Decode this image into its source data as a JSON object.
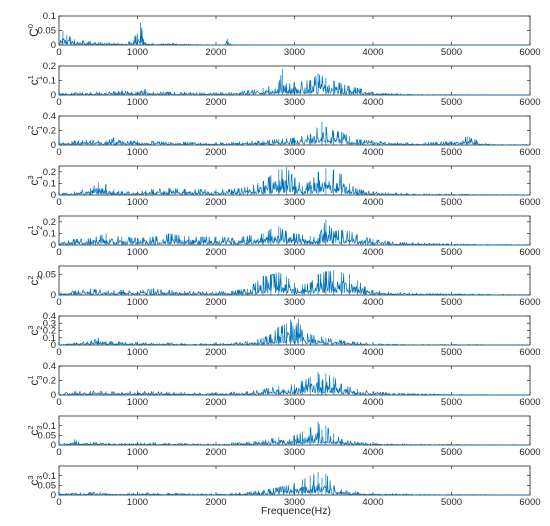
{
  "figure": {
    "xlabel": "Frequence(Hz)",
    "line_color": "#0072BD",
    "axis_color": "#262626"
  },
  "chart_data": [
    {
      "type": "line",
      "label_base": "C",
      "label_sup": "0",
      "label_sub": "",
      "xlim": [
        0,
        6000
      ],
      "ylim": [
        0,
        0.1
      ],
      "xticks": [
        0,
        1000,
        2000,
        3000,
        4000,
        5000,
        6000
      ],
      "yticks": [
        0,
        0.05,
        0.1
      ],
      "ytick_labels": [
        "0",
        "0.05",
        "0.1"
      ],
      "series": [
        {
          "x": [
            0,
            50,
            100,
            150,
            200,
            300,
            400,
            500,
            600,
            700,
            800,
            900,
            1000,
            1040,
            1060,
            1080,
            1100,
            1200,
            1300,
            1400,
            1500,
            1600,
            1700,
            1800,
            1900,
            2000,
            2100,
            2150,
            2180,
            2200,
            2400,
            2600,
            2800,
            3000,
            3500,
            4000,
            4500,
            5000,
            5500,
            6000
          ],
          "y": [
            0.01,
            0.05,
            0.035,
            0.028,
            0.02,
            0.015,
            0.012,
            0.01,
            0.008,
            0.007,
            0.006,
            0.012,
            0.04,
            0.078,
            0.05,
            0.02,
            0.01,
            0.005,
            0.004,
            0.006,
            0.005,
            0.004,
            0.002,
            0.002,
            0.001,
            0.001,
            0.001,
            0.022,
            0.005,
            0.001,
            0.001,
            0.001,
            0.001,
            0.001,
            0.001,
            0.0005,
            0.0005,
            0.0005,
            0.0005,
            0.0005
          ]
        }
      ]
    },
    {
      "type": "line",
      "label_base": "c",
      "label_sup": "1",
      "label_sub": "1",
      "xlim": [
        0,
        6000
      ],
      "ylim": [
        0,
        0.2
      ],
      "xticks": [
        0,
        1000,
        2000,
        3000,
        4000,
        5000,
        6000
      ],
      "yticks": [
        0,
        0.1,
        0.2
      ],
      "ytick_labels": [
        "0",
        "0.1",
        "0.2"
      ],
      "series": [
        {
          "x": [
            0,
            200,
            400,
            600,
            800,
            1000,
            1100,
            1200,
            1400,
            1600,
            1800,
            2000,
            2200,
            2400,
            2600,
            2800,
            2850,
            2900,
            3000,
            3200,
            3300,
            3400,
            3500,
            3600,
            3700,
            3800,
            4000,
            4200,
            4500,
            5000,
            5500,
            6000
          ],
          "y": [
            0.01,
            0.015,
            0.02,
            0.02,
            0.03,
            0.02,
            0.04,
            0.02,
            0.02,
            0.02,
            0.015,
            0.015,
            0.02,
            0.03,
            0.05,
            0.09,
            0.18,
            0.08,
            0.09,
            0.1,
            0.15,
            0.12,
            0.1,
            0.08,
            0.06,
            0.05,
            0.02,
            0.01,
            0.005,
            0.003,
            0.002,
            0.001
          ]
        }
      ]
    },
    {
      "type": "line",
      "label_base": "c",
      "label_sup": "2",
      "label_sub": "1",
      "xlim": [
        0,
        6000
      ],
      "ylim": [
        0,
        0.4
      ],
      "xticks": [
        0,
        1000,
        2000,
        3000,
        4000,
        5000,
        6000
      ],
      "yticks": [
        0,
        0.2,
        0.4
      ],
      "ytick_labels": [
        "0",
        "0.2",
        "0.4"
      ],
      "series": [
        {
          "x": [
            0,
            200,
            400,
            600,
            700,
            800,
            1000,
            1200,
            1400,
            1600,
            1800,
            2000,
            2200,
            2400,
            2600,
            2800,
            3000,
            3200,
            3350,
            3400,
            3500,
            3600,
            3700,
            3800,
            4000,
            4200,
            4500,
            4800,
            5000,
            5200,
            5300,
            5400,
            5600,
            6000
          ],
          "y": [
            0.02,
            0.06,
            0.07,
            0.06,
            0.1,
            0.05,
            0.06,
            0.05,
            0.04,
            0.04,
            0.03,
            0.03,
            0.04,
            0.05,
            0.06,
            0.08,
            0.1,
            0.15,
            0.32,
            0.25,
            0.2,
            0.18,
            0.12,
            0.08,
            0.06,
            0.04,
            0.03,
            0.04,
            0.05,
            0.12,
            0.08,
            0.02,
            0.01,
            0.005
          ]
        }
      ]
    },
    {
      "type": "line",
      "label_base": "c",
      "label_sup": "3",
      "label_sub": "1",
      "xlim": [
        0,
        6000
      ],
      "ylim": [
        0,
        0.25
      ],
      "xticks": [
        0,
        1000,
        2000,
        3000,
        4000,
        5000,
        6000
      ],
      "yticks": [
        0,
        0.1,
        0.2
      ],
      "ytick_labels": [
        "0",
        "0.1",
        "0.2"
      ],
      "series": [
        {
          "x": [
            0,
            200,
            400,
            500,
            600,
            700,
            800,
            1000,
            1200,
            1400,
            1600,
            1800,
            2000,
            2200,
            2400,
            2600,
            2700,
            2800,
            2900,
            3000,
            3100,
            3200,
            3300,
            3400,
            3500,
            3600,
            3700,
            3800,
            4000,
            4200,
            4500,
            5000,
            5500,
            6000
          ],
          "y": [
            0.01,
            0.03,
            0.06,
            0.11,
            0.09,
            0.05,
            0.03,
            0.03,
            0.05,
            0.06,
            0.05,
            0.05,
            0.05,
            0.05,
            0.07,
            0.12,
            0.17,
            0.22,
            0.24,
            0.15,
            0.08,
            0.12,
            0.2,
            0.23,
            0.22,
            0.18,
            0.1,
            0.05,
            0.03,
            0.02,
            0.01,
            0.008,
            0.005,
            0.003
          ]
        }
      ]
    },
    {
      "type": "line",
      "label_base": "c",
      "label_sup": "1",
      "label_sub": "2",
      "xlim": [
        0,
        6000
      ],
      "ylim": [
        0,
        0.25
      ],
      "xticks": [
        0,
        1000,
        2000,
        3000,
        4000,
        5000,
        6000
      ],
      "yticks": [
        0,
        0.1,
        0.2
      ],
      "ytick_labels": [
        "0",
        "0.1",
        "0.2"
      ],
      "series": [
        {
          "x": [
            0,
            200,
            400,
            600,
            800,
            1000,
            1200,
            1400,
            1600,
            1800,
            2000,
            2200,
            2400,
            2600,
            2700,
            2800,
            2900,
            3000,
            3200,
            3300,
            3400,
            3500,
            3600,
            3700,
            3800,
            4000,
            4200,
            4500,
            5000,
            5500,
            6000
          ],
          "y": [
            0.02,
            0.05,
            0.06,
            0.1,
            0.07,
            0.06,
            0.07,
            0.1,
            0.08,
            0.07,
            0.07,
            0.06,
            0.08,
            0.1,
            0.14,
            0.16,
            0.12,
            0.1,
            0.08,
            0.06,
            0.22,
            0.12,
            0.13,
            0.12,
            0.09,
            0.05,
            0.03,
            0.02,
            0.01,
            0.005,
            0.003
          ]
        }
      ]
    },
    {
      "type": "line",
      "label_base": "c",
      "label_sup": "2",
      "label_sub": "2",
      "xlim": [
        0,
        6000
      ],
      "ylim": [
        0,
        0.07
      ],
      "xticks": [
        0,
        1000,
        2000,
        3000,
        4000,
        5000,
        6000
      ],
      "yticks": [
        0,
        0.05
      ],
      "ytick_labels": [
        "0",
        "0.05"
      ],
      "series": [
        {
          "x": [
            0,
            200,
            400,
            600,
            800,
            1000,
            1200,
            1400,
            1600,
            1800,
            2000,
            2200,
            2400,
            2500,
            2600,
            2700,
            2800,
            2900,
            3000,
            3100,
            3200,
            3300,
            3400,
            3500,
            3600,
            3700,
            3800,
            3900,
            4000,
            4200,
            4500,
            5000,
            5500,
            6000
          ],
          "y": [
            0.005,
            0.01,
            0.015,
            0.01,
            0.012,
            0.01,
            0.015,
            0.012,
            0.01,
            0.008,
            0.008,
            0.01,
            0.015,
            0.03,
            0.045,
            0.05,
            0.055,
            0.045,
            0.03,
            0.025,
            0.03,
            0.05,
            0.058,
            0.06,
            0.055,
            0.05,
            0.035,
            0.02,
            0.012,
            0.008,
            0.005,
            0.003,
            0.002,
            0.001
          ]
        }
      ]
    },
    {
      "type": "line",
      "label_base": "c",
      "label_sup": "3",
      "label_sub": "2",
      "xlim": [
        0,
        6000
      ],
      "ylim": [
        0,
        0.4
      ],
      "xticks": [
        0,
        1000,
        2000,
        3000,
        4000,
        5000,
        6000
      ],
      "yticks": [
        0,
        0.1,
        0.2,
        0.3,
        0.4
      ],
      "ytick_labels": [
        "0",
        "0.1",
        "0.2",
        "0.3",
        "0.4"
      ],
      "series": [
        {
          "x": [
            0,
            200,
            400,
            500,
            600,
            800,
            1000,
            1200,
            1400,
            1600,
            1800,
            2000,
            2200,
            2400,
            2600,
            2700,
            2800,
            2900,
            2950,
            3000,
            3050,
            3100,
            3200,
            3400,
            3600,
            3800,
            4000,
            4500,
            5000,
            5500,
            6000
          ],
          "y": [
            0.01,
            0.03,
            0.05,
            0.1,
            0.06,
            0.04,
            0.04,
            0.03,
            0.03,
            0.02,
            0.02,
            0.02,
            0.03,
            0.05,
            0.1,
            0.15,
            0.25,
            0.3,
            0.35,
            0.22,
            0.36,
            0.2,
            0.15,
            0.1,
            0.06,
            0.04,
            0.02,
            0.01,
            0.008,
            0.005,
            0.003
          ]
        }
      ]
    },
    {
      "type": "line",
      "label_base": "c",
      "label_sup": "1",
      "label_sub": "3",
      "xlim": [
        0,
        6000
      ],
      "ylim": [
        0,
        0.4
      ],
      "xticks": [
        0,
        1000,
        2000,
        3000,
        4000,
        5000,
        6000
      ],
      "yticks": [
        0,
        0.2,
        0.4
      ],
      "ytick_labels": [
        "0",
        "0.2",
        "0.4"
      ],
      "series": [
        {
          "x": [
            0,
            200,
            400,
            600,
            800,
            1000,
            1200,
            1400,
            1600,
            1800,
            2000,
            2200,
            2400,
            2600,
            2800,
            3000,
            3100,
            3200,
            3300,
            3350,
            3400,
            3500,
            3600,
            3800,
            4000,
            4200,
            4500,
            5000,
            5500,
            6000
          ],
          "y": [
            0.02,
            0.05,
            0.06,
            0.05,
            0.04,
            0.06,
            0.05,
            0.04,
            0.04,
            0.03,
            0.03,
            0.04,
            0.05,
            0.08,
            0.12,
            0.15,
            0.2,
            0.25,
            0.32,
            0.2,
            0.3,
            0.25,
            0.15,
            0.08,
            0.05,
            0.03,
            0.02,
            0.01,
            0.005,
            0.003
          ]
        }
      ]
    },
    {
      "type": "line",
      "label_base": "c",
      "label_sup": "2",
      "label_sub": "3",
      "xlim": [
        0,
        6000
      ],
      "ylim": [
        0,
        0.15
      ],
      "xticks": [
        0,
        1000,
        2000,
        3000,
        4000,
        5000,
        6000
      ],
      "yticks": [
        0,
        0.05,
        0.1
      ],
      "ytick_labels": [
        "0",
        "0.05",
        "0.1"
      ],
      "series": [
        {
          "x": [
            0,
            100,
            200,
            250,
            300,
            400,
            600,
            800,
            1000,
            1200,
            1400,
            1600,
            1800,
            2000,
            2200,
            2400,
            2600,
            2800,
            3000,
            3100,
            3200,
            3300,
            3350,
            3400,
            3500,
            3600,
            3800,
            4000,
            4500,
            5000,
            5500,
            6000
          ],
          "y": [
            0.005,
            0.01,
            0.03,
            0.012,
            0.008,
            0.015,
            0.01,
            0.01,
            0.008,
            0.012,
            0.01,
            0.008,
            0.006,
            0.005,
            0.01,
            0.015,
            0.025,
            0.04,
            0.05,
            0.07,
            0.09,
            0.12,
            0.08,
            0.1,
            0.06,
            0.03,
            0.015,
            0.008,
            0.004,
            0.003,
            0.002,
            0.001
          ]
        }
      ]
    },
    {
      "type": "line",
      "label_base": "c",
      "label_sup": "3",
      "label_sub": "3",
      "xlim": [
        0,
        6000
      ],
      "ylim": [
        0,
        0.15
      ],
      "xticks": [
        0,
        1000,
        2000,
        3000,
        4000,
        5000,
        6000
      ],
      "yticks": [
        0,
        0.05,
        0.1
      ],
      "ytick_labels": [
        "0",
        "0.05",
        "0.1"
      ],
      "series": [
        {
          "x": [
            0,
            200,
            400,
            600,
            800,
            1000,
            1200,
            1400,
            1600,
            1800,
            2000,
            2200,
            2400,
            2600,
            2800,
            3000,
            3100,
            3200,
            3300,
            3350,
            3400,
            3500,
            3600,
            3800,
            4000,
            4500,
            5000,
            5500,
            6000
          ],
          "y": [
            0.005,
            0.01,
            0.015,
            0.01,
            0.008,
            0.012,
            0.01,
            0.01,
            0.008,
            0.006,
            0.006,
            0.01,
            0.015,
            0.025,
            0.04,
            0.06,
            0.08,
            0.1,
            0.12,
            0.09,
            0.11,
            0.05,
            0.03,
            0.015,
            0.01,
            0.005,
            0.003,
            0.002,
            0.001
          ]
        }
      ]
    }
  ]
}
